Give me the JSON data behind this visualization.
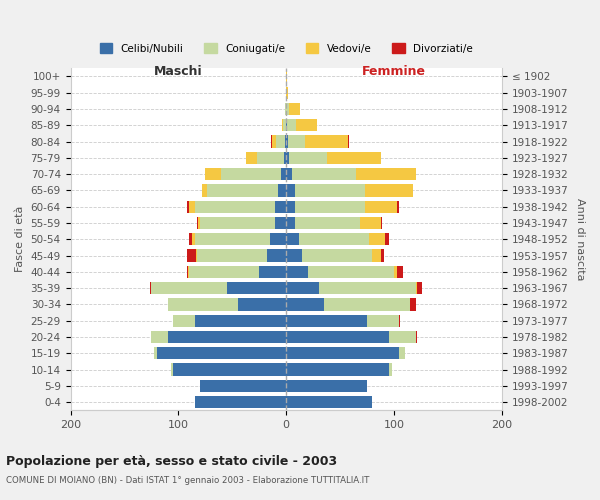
{
  "age_groups": [
    "0-4",
    "5-9",
    "10-14",
    "15-19",
    "20-24",
    "25-29",
    "30-34",
    "35-39",
    "40-44",
    "45-49",
    "50-54",
    "55-59",
    "60-64",
    "65-69",
    "70-74",
    "75-79",
    "80-84",
    "85-89",
    "90-94",
    "95-99",
    "100+"
  ],
  "birth_years": [
    "1998-2002",
    "1993-1997",
    "1988-1992",
    "1983-1987",
    "1978-1982",
    "1973-1977",
    "1968-1972",
    "1963-1967",
    "1958-1962",
    "1953-1957",
    "1948-1952",
    "1943-1947",
    "1938-1942",
    "1933-1937",
    "1928-1932",
    "1923-1927",
    "1918-1922",
    "1913-1917",
    "1908-1912",
    "1903-1907",
    "≤ 1902"
  ],
  "colors": {
    "celibi": "#3a6fa8",
    "coniugati": "#c5d9a0",
    "vedovi": "#f5c842",
    "divorziati": "#cc1a1a"
  },
  "maschi": {
    "celibi": [
      85,
      80,
      105,
      120,
      110,
      85,
      45,
      55,
      25,
      18,
      15,
      10,
      10,
      8,
      5,
      2,
      1,
      0,
      0,
      0,
      0
    ],
    "coniugati": [
      0,
      0,
      2,
      3,
      15,
      20,
      65,
      70,
      65,
      65,
      70,
      70,
      75,
      65,
      55,
      25,
      8,
      3,
      1,
      0,
      0
    ],
    "vedovi": [
      0,
      0,
      0,
      0,
      0,
      0,
      0,
      0,
      1,
      1,
      2,
      2,
      5,
      5,
      15,
      10,
      4,
      1,
      0,
      0,
      0
    ],
    "divorziati": [
      0,
      0,
      0,
      0,
      0,
      0,
      0,
      1,
      1,
      8,
      3,
      1,
      2,
      0,
      0,
      0,
      1,
      0,
      0,
      0,
      0
    ]
  },
  "femmine": {
    "celibi": [
      80,
      75,
      95,
      105,
      95,
      75,
      35,
      30,
      20,
      15,
      12,
      8,
      8,
      8,
      5,
      3,
      2,
      1,
      0,
      0,
      0
    ],
    "coniugati": [
      0,
      0,
      3,
      5,
      25,
      30,
      80,
      90,
      80,
      65,
      65,
      60,
      65,
      65,
      60,
      35,
      15,
      8,
      3,
      0,
      0
    ],
    "vedovi": [
      0,
      0,
      0,
      0,
      0,
      0,
      0,
      1,
      3,
      8,
      15,
      20,
      30,
      45,
      55,
      50,
      40,
      20,
      10,
      2,
      1
    ],
    "divorziati": [
      0,
      0,
      0,
      0,
      1,
      1,
      5,
      5,
      5,
      3,
      3,
      1,
      2,
      0,
      0,
      0,
      1,
      0,
      0,
      0,
      0
    ]
  },
  "title": "Popolazione per età, sesso e stato civile - 2003",
  "subtitle": "COMUNE DI MOIANO (BN) - Dati ISTAT 1° gennaio 2003 - Elaborazione TUTTITALIA.IT",
  "xlabel_left": "Maschi",
  "xlabel_right": "Femmine",
  "ylabel_left": "Fasce di età",
  "ylabel_right": "Anni di nascita",
  "xlim": 200,
  "background_color": "#f0f0f0",
  "plot_bg_color": "#ffffff",
  "legend_labels": [
    "Celibi/Nubili",
    "Coniugati/e",
    "Vedovi/e",
    "Divorziati/e"
  ]
}
